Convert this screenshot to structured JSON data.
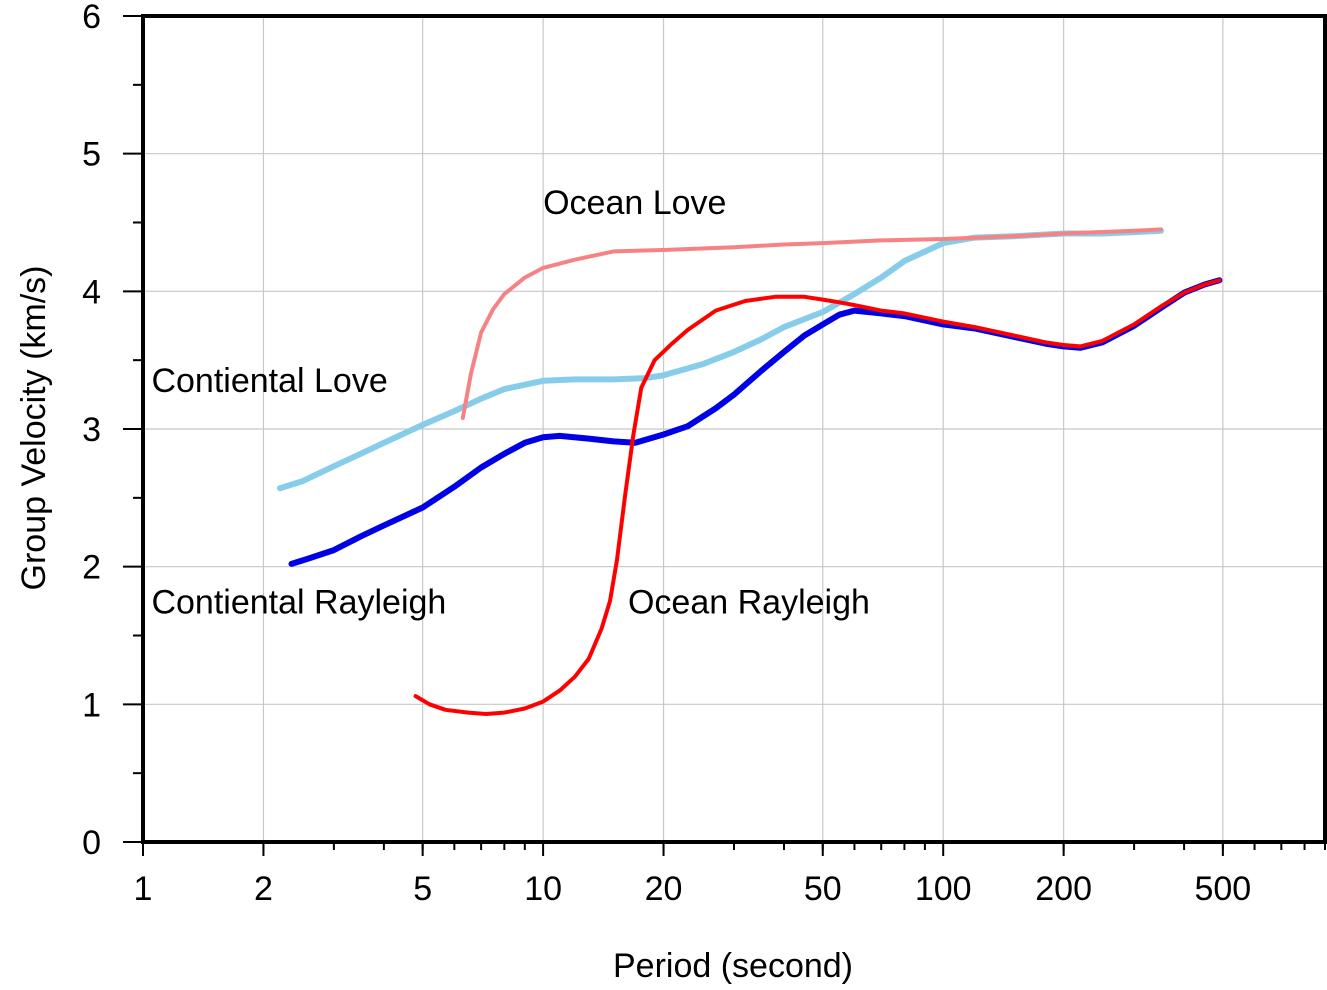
{
  "chart_data": {
    "type": "line",
    "xlabel": "Period (second)",
    "ylabel": "Group Velocity (km/s)",
    "xscale": "log",
    "xlim": [
      1,
      900
    ],
    "ylim": [
      0,
      6
    ],
    "grid": true,
    "x_ticks": [
      1,
      2,
      5,
      10,
      20,
      50,
      100,
      200,
      500
    ],
    "x_tick_labels": [
      "1",
      "2",
      "5",
      "10",
      "20",
      "50",
      "100",
      "200",
      "500"
    ],
    "y_ticks": [
      0,
      1,
      2,
      3,
      4,
      5,
      6
    ],
    "y_tick_labels": [
      "0",
      "1",
      "2",
      "3",
      "4",
      "5",
      "6"
    ],
    "series": [
      {
        "name": "Contiental Love",
        "color": "#87cdea",
        "label_anchor": [
          1.05,
          3.27
        ],
        "points": [
          [
            2.2,
            2.57
          ],
          [
            2.5,
            2.62
          ],
          [
            3,
            2.73
          ],
          [
            3.5,
            2.82
          ],
          [
            4,
            2.9
          ],
          [
            5,
            3.03
          ],
          [
            6,
            3.13
          ],
          [
            7,
            3.22
          ],
          [
            8,
            3.29
          ],
          [
            10,
            3.35
          ],
          [
            12,
            3.36
          ],
          [
            15,
            3.36
          ],
          [
            18,
            3.37
          ],
          [
            20,
            3.39
          ],
          [
            25,
            3.47
          ],
          [
            30,
            3.56
          ],
          [
            35,
            3.65
          ],
          [
            40,
            3.74
          ],
          [
            50,
            3.85
          ],
          [
            60,
            3.98
          ],
          [
            70,
            4.1
          ],
          [
            80,
            4.22
          ],
          [
            100,
            4.35
          ],
          [
            120,
            4.39
          ],
          [
            150,
            4.4
          ],
          [
            200,
            4.42
          ],
          [
            250,
            4.42
          ],
          [
            300,
            4.43
          ],
          [
            350,
            4.44
          ]
        ]
      },
      {
        "name": "Ocean Love",
        "color": "#f58384",
        "label_anchor": [
          10,
          4.56
        ],
        "points": [
          [
            6.3,
            3.08
          ],
          [
            6.6,
            3.4
          ],
          [
            7,
            3.7
          ],
          [
            7.5,
            3.87
          ],
          [
            8,
            3.98
          ],
          [
            9,
            4.1
          ],
          [
            10,
            4.17
          ],
          [
            12,
            4.23
          ],
          [
            15,
            4.29
          ],
          [
            20,
            4.3
          ],
          [
            30,
            4.32
          ],
          [
            40,
            4.34
          ],
          [
            50,
            4.35
          ],
          [
            70,
            4.37
          ],
          [
            100,
            4.38
          ],
          [
            150,
            4.4
          ],
          [
            200,
            4.42
          ],
          [
            300,
            4.44
          ],
          [
            350,
            4.45
          ]
        ]
      },
      {
        "name": "Contiental Rayleigh",
        "color": "#0000e6",
        "label_anchor": [
          1.05,
          1.66
        ],
        "points": [
          [
            2.35,
            2.02
          ],
          [
            2.6,
            2.06
          ],
          [
            3,
            2.12
          ],
          [
            3.5,
            2.22
          ],
          [
            4,
            2.3
          ],
          [
            5,
            2.43
          ],
          [
            6,
            2.58
          ],
          [
            7,
            2.72
          ],
          [
            8,
            2.82
          ],
          [
            9,
            2.9
          ],
          [
            10,
            2.94
          ],
          [
            11,
            2.95
          ],
          [
            13,
            2.93
          ],
          [
            15,
            2.91
          ],
          [
            17,
            2.9
          ],
          [
            20,
            2.96
          ],
          [
            23,
            3.02
          ],
          [
            27,
            3.15
          ],
          [
            30,
            3.25
          ],
          [
            35,
            3.42
          ],
          [
            40,
            3.56
          ],
          [
            45,
            3.68
          ],
          [
            50,
            3.76
          ],
          [
            55,
            3.83
          ],
          [
            60,
            3.86
          ],
          [
            70,
            3.84
          ],
          [
            80,
            3.82
          ],
          [
            100,
            3.76
          ],
          [
            120,
            3.73
          ],
          [
            150,
            3.67
          ],
          [
            180,
            3.62
          ],
          [
            200,
            3.6
          ],
          [
            220,
            3.59
          ],
          [
            250,
            3.63
          ],
          [
            300,
            3.75
          ],
          [
            350,
            3.88
          ],
          [
            400,
            3.99
          ],
          [
            450,
            4.05
          ],
          [
            490,
            4.08
          ]
        ]
      },
      {
        "name": "Ocean Rayleigh",
        "color": "#ff0000",
        "label_anchor": [
          16.3,
          1.66
        ],
        "points": [
          [
            4.8,
            1.06
          ],
          [
            5.2,
            1.0
          ],
          [
            5.7,
            0.96
          ],
          [
            6.5,
            0.94
          ],
          [
            7.2,
            0.93
          ],
          [
            8,
            0.94
          ],
          [
            9,
            0.97
          ],
          [
            10,
            1.02
          ],
          [
            11,
            1.1
          ],
          [
            12,
            1.2
          ],
          [
            13,
            1.33
          ],
          [
            14,
            1.55
          ],
          [
            14.7,
            1.75
          ],
          [
            15.3,
            2.05
          ],
          [
            16,
            2.5
          ],
          [
            16.8,
            2.95
          ],
          [
            17.6,
            3.3
          ],
          [
            19,
            3.5
          ],
          [
            21,
            3.62
          ],
          [
            23,
            3.72
          ],
          [
            27,
            3.86
          ],
          [
            32,
            3.93
          ],
          [
            38,
            3.96
          ],
          [
            45,
            3.96
          ],
          [
            50,
            3.94
          ],
          [
            55,
            3.92
          ],
          [
            60,
            3.9
          ],
          [
            70,
            3.86
          ],
          [
            80,
            3.84
          ],
          [
            100,
            3.78
          ],
          [
            120,
            3.74
          ],
          [
            150,
            3.68
          ],
          [
            180,
            3.63
          ],
          [
            200,
            3.61
          ],
          [
            220,
            3.6
          ],
          [
            250,
            3.64
          ],
          [
            300,
            3.76
          ],
          [
            350,
            3.89
          ],
          [
            400,
            3.99
          ],
          [
            450,
            4.05
          ],
          [
            490,
            4.08
          ]
        ]
      }
    ]
  }
}
